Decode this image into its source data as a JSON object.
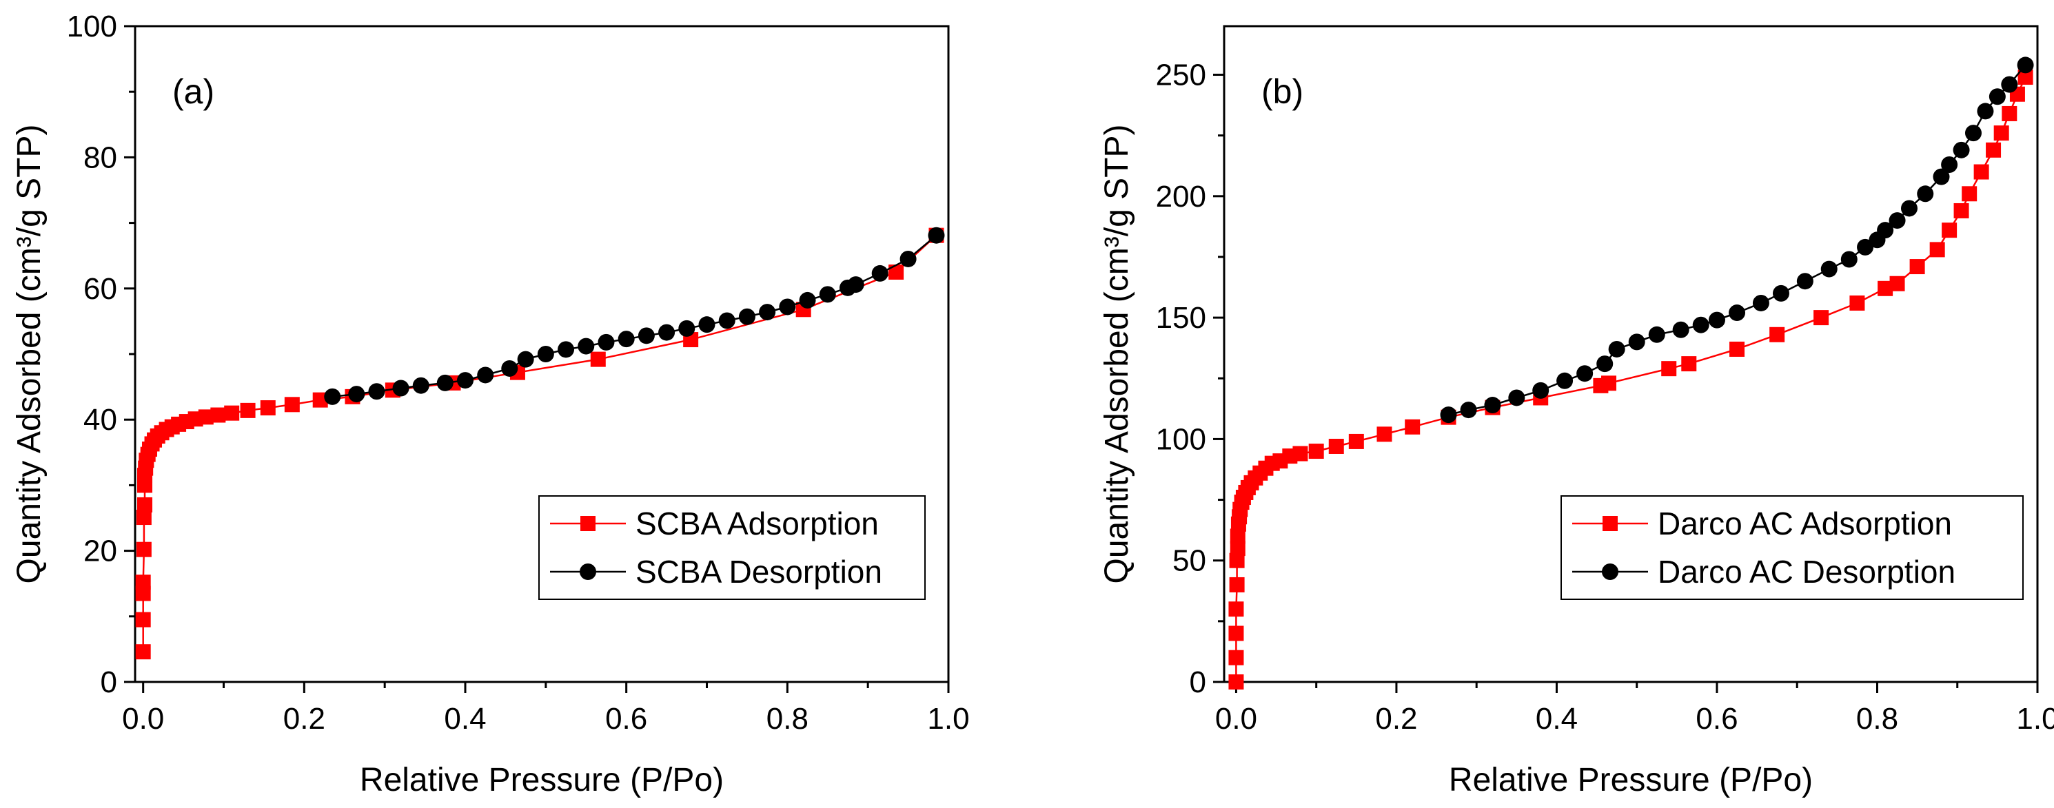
{
  "colors": {
    "adsorption": "#ff0000",
    "desorption": "#000000",
    "axis": "#000000"
  },
  "chart_data": [
    {
      "type": "line",
      "panel_label": "(a)",
      "xlabel": "Relative Pressure (P/Po)",
      "ylabel": "Quantity Adsorbed (cm³/g STP)",
      "xlim": [
        -0.01,
        1.0
      ],
      "ylim": [
        0,
        100
      ],
      "xticks": [
        "0.0",
        "0.2",
        "0.4",
        "0.6",
        "0.8",
        "1.0"
      ],
      "xtick_values": [
        0.0,
        0.2,
        0.4,
        0.6,
        0.8,
        1.0
      ],
      "yticks": [
        "0",
        "20",
        "40",
        "60",
        "80",
        "100"
      ],
      "ytick_values": [
        0,
        20,
        40,
        60,
        80,
        100
      ],
      "legend_position": "bottom-right",
      "series": [
        {
          "name": "SCBA Adsorption",
          "marker": "square",
          "color": "#ff0000",
          "x": [
            0.0,
            0.0,
            0.0,
            0.0,
            0.001,
            0.001,
            0.002,
            0.002,
            0.002,
            0.003,
            0.004,
            0.006,
            0.008,
            0.011,
            0.014,
            0.018,
            0.023,
            0.029,
            0.036,
            0.044,
            0.054,
            0.065,
            0.078,
            0.093,
            0.11,
            0.13,
            0.155,
            0.185,
            0.22,
            0.26,
            0.31,
            0.385,
            0.465,
            0.565,
            0.68,
            0.82,
            0.935,
            0.985
          ],
          "values": [
            4.6,
            9.5,
            13.5,
            15.2,
            20.2,
            25.1,
            27.0,
            30.0,
            31.5,
            32.6,
            33.8,
            34.7,
            35.5,
            36.3,
            36.9,
            37.5,
            38.0,
            38.5,
            38.9,
            39.3,
            39.7,
            40.1,
            40.4,
            40.7,
            41.0,
            41.4,
            41.8,
            42.3,
            43.0,
            43.5,
            44.5,
            45.6,
            47.2,
            49.2,
            52.2,
            56.8,
            62.5,
            68.1
          ]
        },
        {
          "name": "SCBA Desorption",
          "marker": "circle",
          "color": "#000000",
          "x": [
            0.985,
            0.95,
            0.915,
            0.885,
            0.875,
            0.85,
            0.825,
            0.8,
            0.775,
            0.75,
            0.725,
            0.7,
            0.675,
            0.65,
            0.625,
            0.6,
            0.575,
            0.55,
            0.525,
            0.5,
            0.475,
            0.455,
            0.425,
            0.4,
            0.375,
            0.345,
            0.32,
            0.29,
            0.265,
            0.235
          ],
          "values": [
            68.1,
            64.5,
            62.3,
            60.6,
            60.1,
            59.1,
            58.2,
            57.2,
            56.4,
            55.7,
            55.1,
            54.5,
            53.9,
            53.3,
            52.8,
            52.3,
            51.8,
            51.2,
            50.7,
            50.0,
            49.2,
            47.8,
            46.8,
            46.0,
            45.6,
            45.2,
            44.8,
            44.3,
            43.9,
            43.5
          ]
        }
      ]
    },
    {
      "type": "line",
      "panel_label": "(b)",
      "xlabel": "Relative Pressure (P/Po)",
      "ylabel": "Quantity Adsorbed (cm³/g STP)",
      "xlim": [
        -0.015,
        1.0
      ],
      "ylim": [
        0,
        270
      ],
      "xticks": [
        "0.0",
        "0.2",
        "0.4",
        "0.6",
        "0.8",
        "1.0"
      ],
      "xtick_values": [
        0.0,
        0.2,
        0.4,
        0.6,
        0.8,
        1.0
      ],
      "yticks": [
        "0",
        "50",
        "100",
        "150",
        "200",
        "250"
      ],
      "ytick_values": [
        0,
        50,
        100,
        150,
        200,
        250
      ],
      "legend_position": "bottom-right",
      "series": [
        {
          "name": "Darco AC Adsorption",
          "marker": "square",
          "color": "#ff0000",
          "x": [
            0.0,
            0.0,
            0.0,
            0.0,
            0.001,
            0.001,
            0.002,
            0.002,
            0.003,
            0.004,
            0.005,
            0.007,
            0.009,
            0.012,
            0.015,
            0.019,
            0.024,
            0.03,
            0.037,
            0.045,
            0.055,
            0.067,
            0.08,
            0.1,
            0.125,
            0.15,
            0.185,
            0.22,
            0.265,
            0.32,
            0.38,
            0.455,
            0.465,
            0.54,
            0.565,
            0.625,
            0.675,
            0.73,
            0.775,
            0.81,
            0.825,
            0.85,
            0.875,
            0.89,
            0.905,
            0.915,
            0.93,
            0.945,
            0.955,
            0.965,
            0.975,
            0.985
          ],
          "values": [
            0,
            10,
            20,
            30,
            40,
            50,
            55,
            60,
            65,
            68,
            71,
            74,
            76,
            78,
            80,
            82,
            84,
            86,
            88,
            90,
            91,
            93,
            94,
            95,
            97,
            99,
            102,
            105,
            109,
            113,
            117,
            122,
            123,
            129,
            131,
            137,
            143,
            150,
            156,
            162,
            164,
            171,
            178,
            186,
            194,
            201,
            210,
            219,
            226,
            234,
            242,
            249
          ]
        },
        {
          "name": "Darco AC Desorption",
          "marker": "circle",
          "color": "#000000",
          "x": [
            0.985,
            0.965,
            0.95,
            0.935,
            0.92,
            0.905,
            0.89,
            0.88,
            0.86,
            0.84,
            0.825,
            0.81,
            0.8,
            0.785,
            0.765,
            0.74,
            0.71,
            0.68,
            0.655,
            0.625,
            0.6,
            0.58,
            0.555,
            0.525,
            0.5,
            0.475,
            0.46,
            0.435,
            0.41,
            0.38,
            0.35,
            0.32,
            0.29,
            0.265
          ],
          "values": [
            254,
            246,
            241,
            235,
            226,
            219,
            213,
            208,
            201,
            195,
            190,
            186,
            182,
            179,
            174,
            170,
            165,
            160,
            156,
            152,
            149,
            147,
            145,
            143,
            140,
            137,
            131,
            127,
            124,
            120,
            117,
            114,
            112,
            110
          ]
        }
      ]
    }
  ]
}
